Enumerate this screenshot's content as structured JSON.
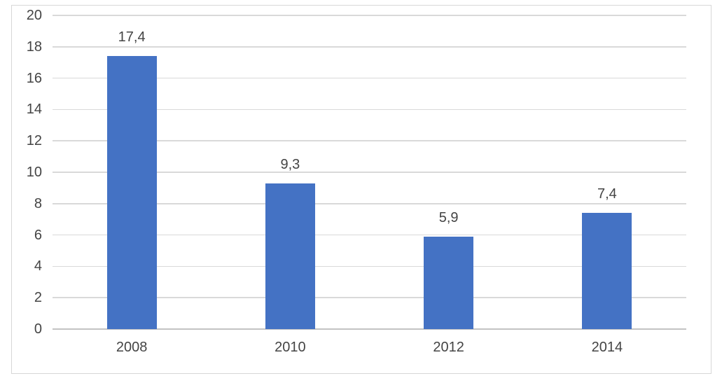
{
  "chart_data": {
    "type": "bar",
    "categories": [
      "2008",
      "2010",
      "2012",
      "2014"
    ],
    "values": [
      17.4,
      9.3,
      5.9,
      7.4
    ],
    "data_labels": [
      "17,4",
      "9,3",
      "5,9",
      "7,4"
    ],
    "title": "",
    "xlabel": "",
    "ylabel": "",
    "ylim": [
      0,
      20
    ],
    "ytick_step": 2,
    "ytick_labels": [
      "0",
      "2",
      "4",
      "6",
      "8",
      "10",
      "12",
      "14",
      "16",
      "18",
      "20"
    ],
    "grid": true,
    "legend_position": "none",
    "decimal_separator": ",",
    "colors": {
      "bar": "#4472C4",
      "gridline": "#D9D9D9",
      "axis_line": "#C3C3C3",
      "text": "#444444",
      "frame_border": "#D7D7D7",
      "background": "#FFFFFF"
    }
  }
}
